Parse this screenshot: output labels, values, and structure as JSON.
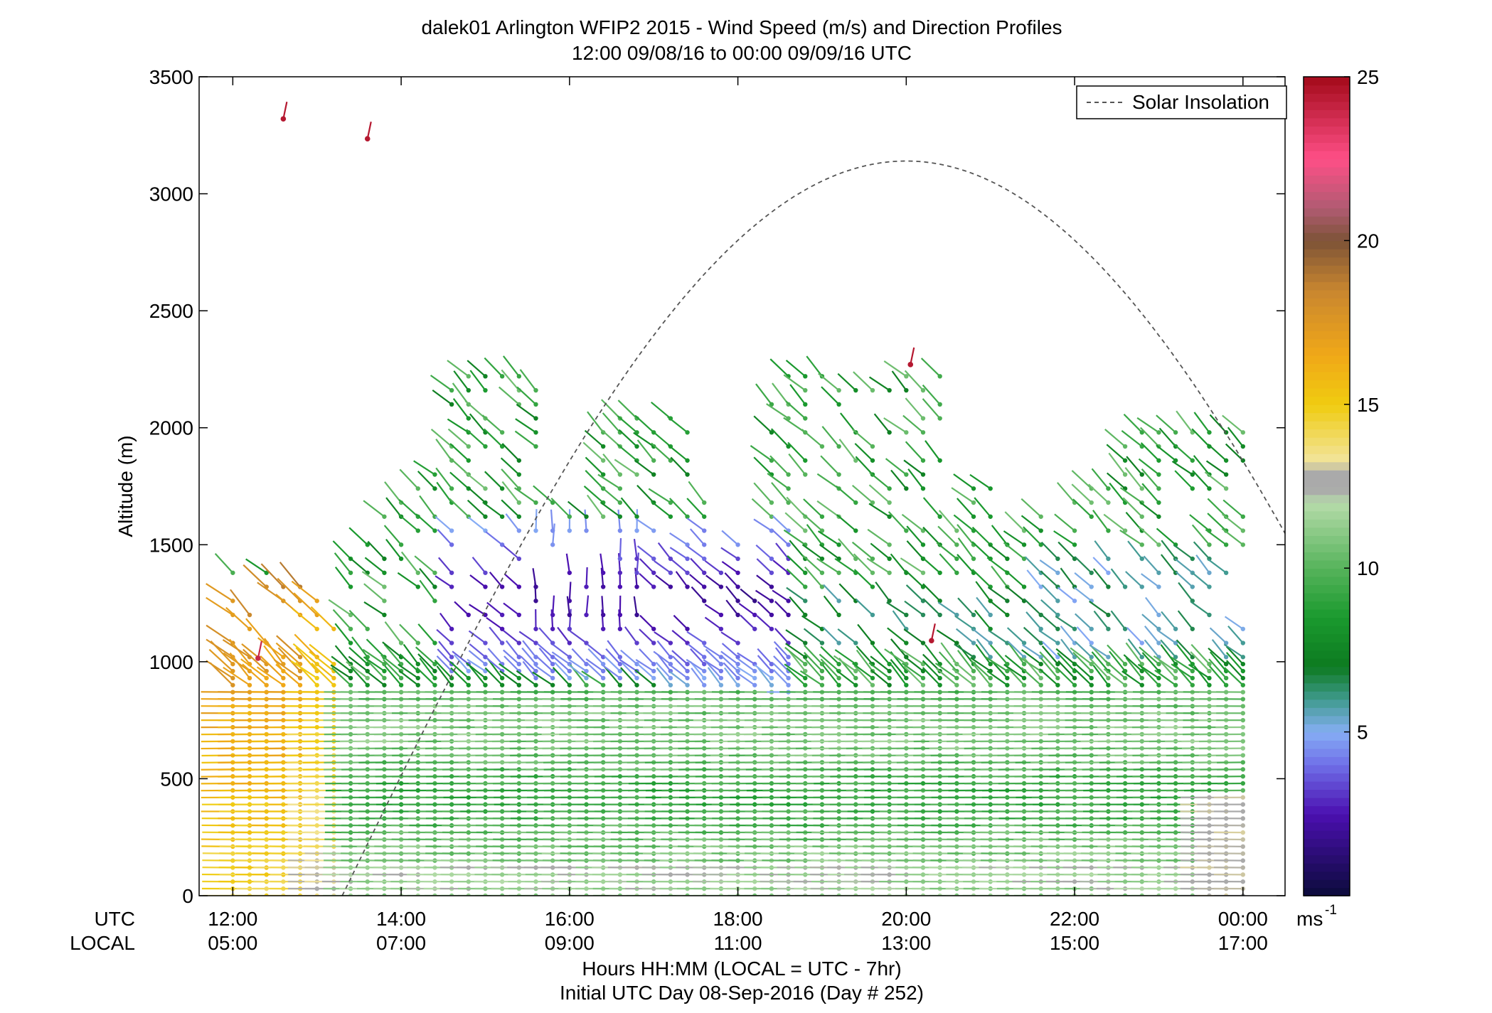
{
  "chart_data": {
    "type": "wind-profile",
    "title": "dalek01 Arlington WFIP2 2015 - Wind Speed (m/s) and Direction Profiles",
    "subtitle": "12:00 09/08/16 to 00:00 09/09/16  UTC",
    "ylabel": "Altitude (m)",
    "xlabel": "Hours HH:MM  (LOCAL = UTC - 7hr)",
    "xlabel2": "Initial UTC Day 08-Sep-2016 (Day # 252)",
    "utc_row_label": "UTC",
    "local_row_label": "LOCAL",
    "xlim": [
      11.6,
      24.5
    ],
    "ylim": [
      0,
      3500
    ],
    "x_ticks": [
      {
        "value": 12,
        "utc": "12:00",
        "local": "05:00"
      },
      {
        "value": 14,
        "utc": "14:00",
        "local": "07:00"
      },
      {
        "value": 16,
        "utc": "16:00",
        "local": "09:00"
      },
      {
        "value": 18,
        "utc": "18:00",
        "local": "11:00"
      },
      {
        "value": 20,
        "utc": "20:00",
        "local": "13:00"
      },
      {
        "value": 22,
        "utc": "22:00",
        "local": "15:00"
      },
      {
        "value": 24,
        "utc": "00:00",
        "local": "17:00"
      }
    ],
    "y_ticks": [
      {
        "value": 0,
        "label": "0"
      },
      {
        "value": 500,
        "label": "500"
      },
      {
        "value": 1000,
        "label": "1000"
      },
      {
        "value": 1500,
        "label": "1500"
      },
      {
        "value": 2000,
        "label": "2000"
      },
      {
        "value": 2500,
        "label": "2500"
      },
      {
        "value": 3000,
        "label": "3000"
      },
      {
        "value": 3500,
        "label": "3500"
      }
    ],
    "legend": {
      "label": "Solar Insolation",
      "placement": "top-right",
      "line_color": "#555555",
      "line_style": "dashed"
    },
    "colorbar": {
      "min": 0,
      "max": 25,
      "ticks": [
        {
          "value": 5,
          "label": "5"
        },
        {
          "value": 10,
          "label": "10"
        },
        {
          "value": 15,
          "label": "15"
        },
        {
          "value": 20,
          "label": "20"
        },
        {
          "value": 25,
          "label": "25"
        }
      ],
      "unit_label": "ms",
      "unit_exponent": "-1",
      "stops": [
        {
          "v": 0,
          "color": "#0b0b3a"
        },
        {
          "v": 2.5,
          "color": "#4b0fb0"
        },
        {
          "v": 4.0,
          "color": "#6f6fe8"
        },
        {
          "v": 5.0,
          "color": "#86aef5"
        },
        {
          "v": 6.0,
          "color": "#3f9a8e"
        },
        {
          "v": 7.0,
          "color": "#0d7a20"
        },
        {
          "v": 8.5,
          "color": "#1a9a2e"
        },
        {
          "v": 10.0,
          "color": "#56b35b"
        },
        {
          "v": 12.0,
          "color": "#b6dcaa"
        },
        {
          "v": 12.4,
          "color": "#aaaaaa"
        },
        {
          "v": 12.9,
          "color": "#aaaaaa"
        },
        {
          "v": 13.3,
          "color": "#f2e49a"
        },
        {
          "v": 15.0,
          "color": "#f0cc10"
        },
        {
          "v": 16.5,
          "color": "#f0a818"
        },
        {
          "v": 18.5,
          "color": "#c8862f"
        },
        {
          "v": 20.0,
          "color": "#7d5337"
        },
        {
          "v": 21.0,
          "color": "#b05b72"
        },
        {
          "v": 22.5,
          "color": "#ff4f87"
        },
        {
          "v": 25.0,
          "color": "#a30a1a"
        }
      ]
    },
    "solar_insolation_curve": {
      "note_units": "curve peak drawn at altitude-axis units",
      "sunrise_hour": 13.3,
      "peak_hour": 20.0,
      "peak_altitude": 3140,
      "end_hour": 24.5,
      "end_altitude": 1570
    },
    "wind_barbs_summary": {
      "times_start": 12.0,
      "times_end": 24.0,
      "time_step_hours": 0.2,
      "lowest_gate_m": 0,
      "gate_spacing_m": 30,
      "regions": [
        {
          "hours": [
            12.0,
            13.2
          ],
          "altitude_m": [
            0,
            1400
          ],
          "speed_ms": [
            14,
            18
          ],
          "note": "yellow/orange early-morning jet"
        },
        {
          "hours": [
            13.2,
            24.0
          ],
          "altitude_m": [
            0,
            900
          ],
          "speed_ms": [
            8,
            11
          ],
          "note": "green low-level flow"
        },
        {
          "hours": [
            14.5,
            18.5
          ],
          "altitude_m": [
            900,
            1600
          ],
          "speed_ms": [
            1,
            4
          ],
          "note": "purple/blue light winds aloft"
        },
        {
          "hours": [
            18.5,
            24.0
          ],
          "altitude_m": [
            1000,
            2000
          ],
          "speed_ms": [
            5,
            9
          ],
          "note": "green/blue afternoon aloft"
        }
      ],
      "isolated_barbs": [
        {
          "hour": 12.6,
          "altitude_m": 3320,
          "speed_ms": 24.5
        },
        {
          "hour": 13.6,
          "altitude_m": 3235,
          "speed_ms": 24.5
        },
        {
          "hour": 12.3,
          "altitude_m": 1015,
          "speed_ms": 24.0
        },
        {
          "hour": 20.05,
          "altitude_m": 2270,
          "speed_ms": 24.5
        },
        {
          "hour": 20.3,
          "altitude_m": 1090,
          "speed_ms": 24.5
        }
      ]
    }
  }
}
